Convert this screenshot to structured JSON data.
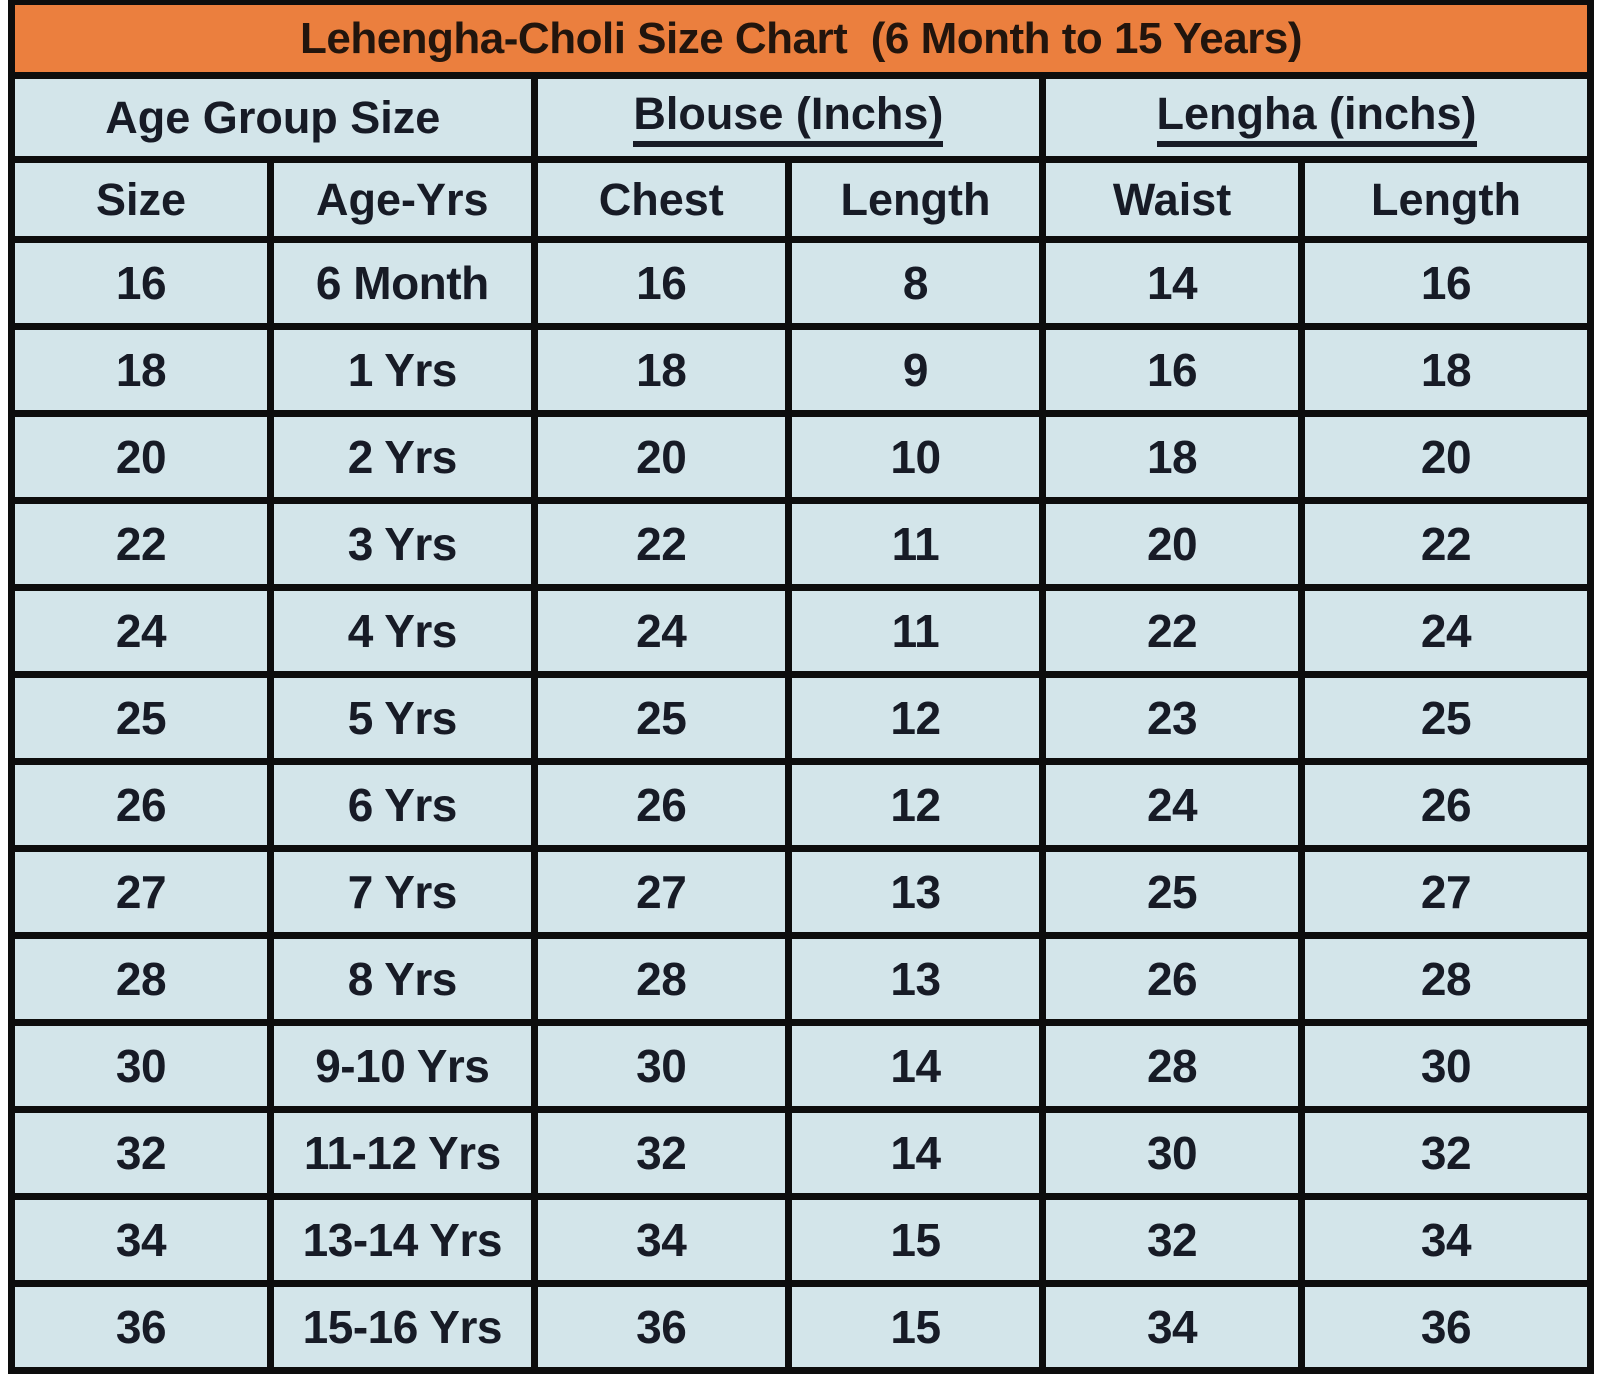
{
  "colors": {
    "title_bg": "#eb7f3e",
    "cell_bg": "#d3e5ea",
    "border": "#0d0d0d",
    "cell_text": "#171b26",
    "title_text": "#22150d"
  },
  "chart_data": {
    "type": "table",
    "title": "Lehengha-Choli Size Chart  (6 Month to 15 Years)",
    "group_headers": [
      {
        "label": "Age Group Size",
        "underline": false
      },
      {
        "label": "Blouse (Inchs)",
        "underline": true
      },
      {
        "label": "Lengha (inchs)",
        "underline": true
      }
    ],
    "column_headers": [
      "Size",
      "Age-Yrs",
      "Chest",
      "Length",
      "Waist",
      "Length"
    ],
    "rows": [
      [
        "16",
        "6 Month",
        "16",
        "8",
        "14",
        "16"
      ],
      [
        "18",
        "1 Yrs",
        "18",
        "9",
        "16",
        "18"
      ],
      [
        "20",
        "2 Yrs",
        "20",
        "10",
        "18",
        "20"
      ],
      [
        "22",
        "3 Yrs",
        "22",
        "11",
        "20",
        "22"
      ],
      [
        "24",
        "4 Yrs",
        "24",
        "11",
        "22",
        "24"
      ],
      [
        "25",
        "5 Yrs",
        "25",
        "12",
        "23",
        "25"
      ],
      [
        "26",
        "6 Yrs",
        "26",
        "12",
        "24",
        "26"
      ],
      [
        "27",
        "7 Yrs",
        "27",
        "13",
        "25",
        "27"
      ],
      [
        "28",
        "8 Yrs",
        "28",
        "13",
        "26",
        "28"
      ],
      [
        "30",
        "9-10 Yrs",
        "30",
        "14",
        "28",
        "30"
      ],
      [
        "32",
        "11-12 Yrs",
        "32",
        "14",
        "30",
        "32"
      ],
      [
        "34",
        "13-14 Yrs",
        "34",
        "15",
        "32",
        "34"
      ],
      [
        "36",
        "15-16 Yrs",
        "36",
        "15",
        "34",
        "36"
      ]
    ]
  }
}
